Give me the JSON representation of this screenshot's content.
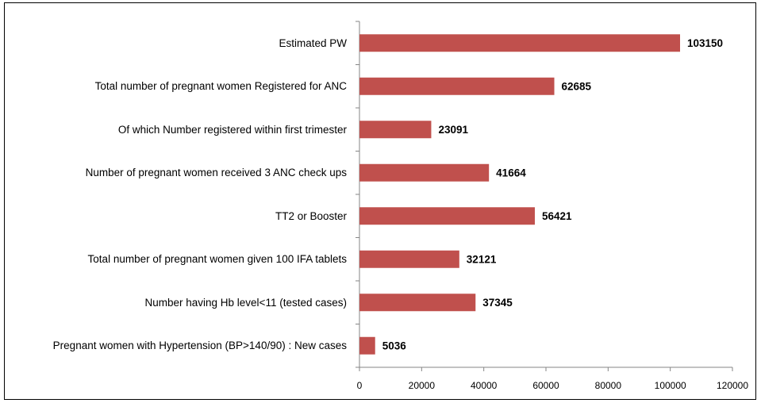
{
  "chart_data": {
    "type": "bar",
    "orientation": "horizontal",
    "categories": [
      "Estimated PW",
      "Total number of pregnant women Registered for ANC",
      "Of which Number registered within first trimester",
      "Number of pregnant women received 3 ANC check ups",
      "TT2 or Booster",
      "Total number of pregnant women given 100 IFA tablets",
      "Number having Hb level<11 (tested cases)",
      "Pregnant women with Hypertension (BP>140/90) : New cases"
    ],
    "values": [
      103150,
      62685,
      23091,
      41664,
      56421,
      32121,
      37345,
      5036
    ],
    "color": "#c0504d",
    "xlim": [
      0,
      120000
    ],
    "xticks": [
      0,
      20000,
      40000,
      60000,
      80000,
      100000,
      120000
    ]
  }
}
